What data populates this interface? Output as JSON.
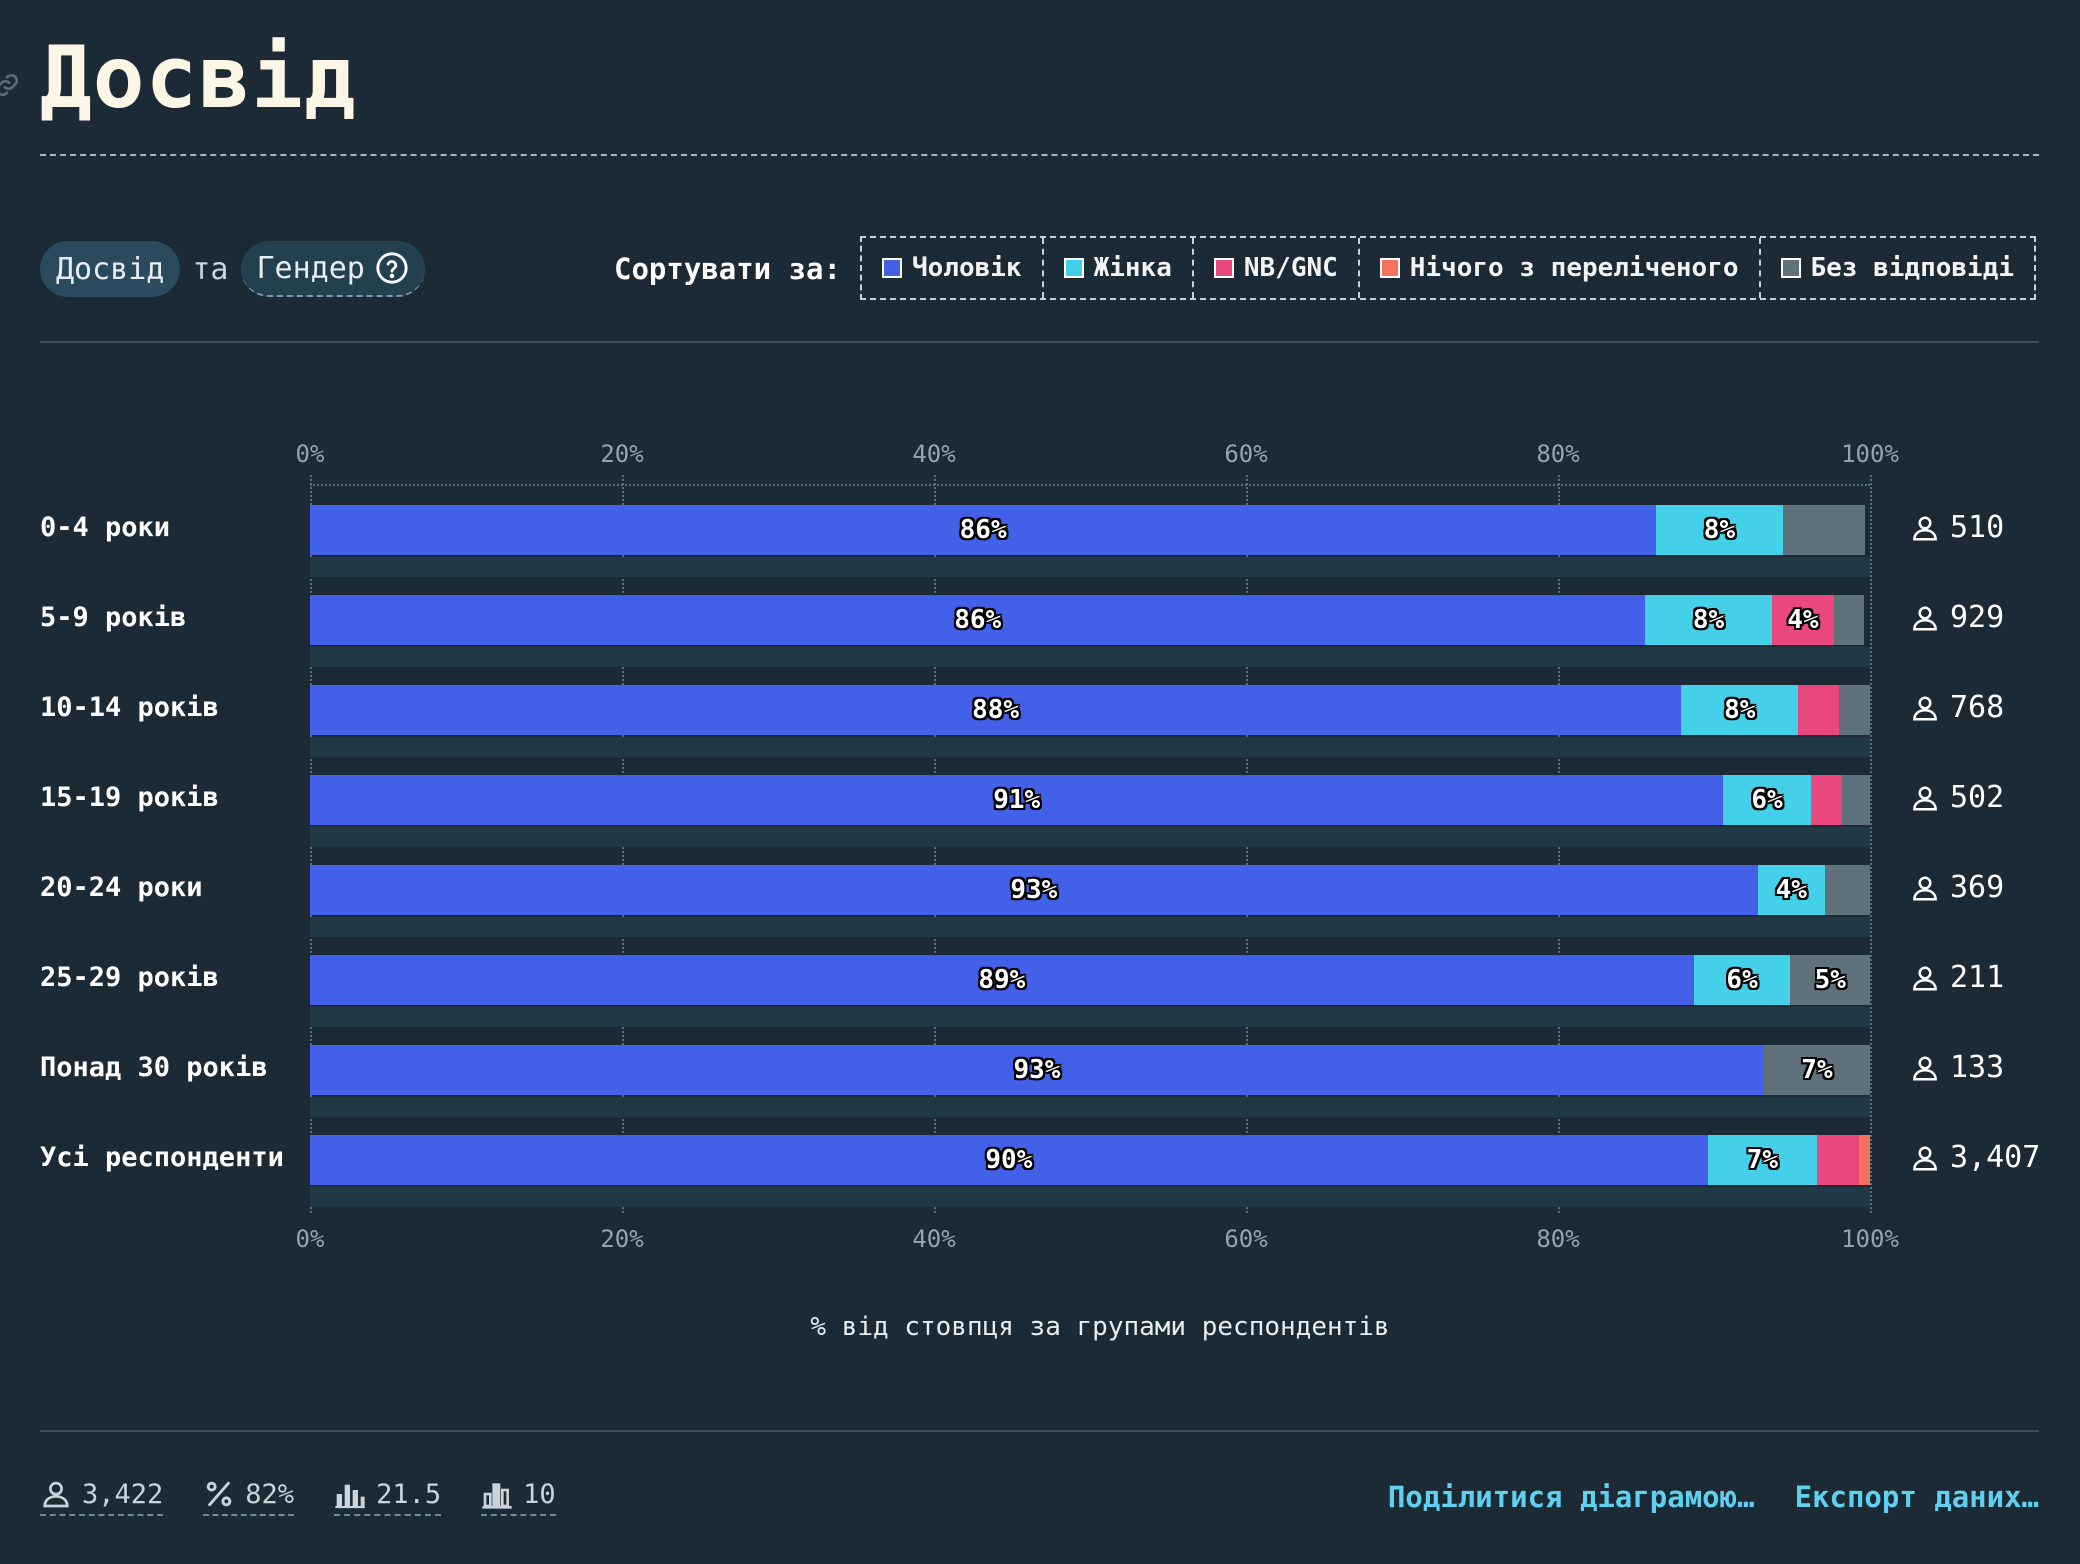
{
  "page": {
    "title": "Досвід"
  },
  "selector": {
    "primary": "Досвід",
    "conjunction": "та",
    "secondary": "Гендер"
  },
  "sort": {
    "label": "Сортувати за:",
    "legend": [
      {
        "name": "Чоловік",
        "color": "#4360e8"
      },
      {
        "name": "Жінка",
        "color": "#45d0ea"
      },
      {
        "name": "NB/GNC",
        "color": "#e9477d"
      },
      {
        "name": "Нічого з переліченого",
        "color": "#f5705f"
      },
      {
        "name": "Без відповіді",
        "color": "#5f717b"
      }
    ]
  },
  "chart_data": {
    "type": "bar",
    "orientation": "horizontal",
    "stacked": true,
    "xlabel": "% від стовпця за групами респондентів",
    "xlim": [
      0,
      100
    ],
    "x_ticks": [
      "0%",
      "20%",
      "40%",
      "60%",
      "80%",
      "100%"
    ],
    "categories": [
      "0-4 роки",
      "5-9 років",
      "10-14 років",
      "15-19 років",
      "20-24 роки",
      "25-29 років",
      "Понад 30 років",
      "Усі респонденти"
    ],
    "counts": [
      "510",
      "929",
      "768",
      "502",
      "369",
      "211",
      "133",
      "3,407"
    ],
    "series": [
      {
        "name": "Чоловік",
        "color": "#4360e8",
        "values": [
          86.3,
          85.6,
          87.9,
          90.6,
          92.8,
          88.7,
          93.2,
          89.6
        ],
        "labels": [
          "86%",
          "86%",
          "88%",
          "91%",
          "93%",
          "89%",
          "93%",
          "90%"
        ]
      },
      {
        "name": "Жінка",
        "color": "#45d0ea",
        "values": [
          8.1,
          8.1,
          7.5,
          5.6,
          4.3,
          6.2,
          0,
          7.0
        ],
        "labels": [
          "8%",
          "8%",
          "8%",
          "6%",
          "4%",
          "6%",
          "",
          "7%"
        ]
      },
      {
        "name": "NB/GNC",
        "color": "#e9477d",
        "values": [
          0,
          4.0,
          2.6,
          2.0,
          0,
          0,
          0,
          2.7
        ],
        "labels": [
          "",
          "4%",
          "",
          "",
          "",
          "",
          "",
          ""
        ]
      },
      {
        "name": "Нічого з переліченого",
        "color": "#f5705f",
        "values": [
          0,
          0,
          0,
          0,
          0,
          0,
          0,
          0.7
        ],
        "labels": [
          "",
          "",
          "",
          "",
          "",
          "",
          "",
          ""
        ]
      },
      {
        "name": "Без відповіді",
        "color": "#5f717b",
        "values": [
          5.3,
          1.9,
          2.0,
          1.8,
          2.9,
          5.1,
          6.8,
          0
        ],
        "labels": [
          "",
          "",
          "",
          "",
          "",
          "5%",
          "7%",
          ""
        ]
      }
    ]
  },
  "footer": {
    "stats": [
      {
        "icon": "person-icon",
        "value": "3,422"
      },
      {
        "icon": "percent-icon",
        "value": "82%"
      },
      {
        "icon": "bar-chart-icon",
        "value": "21.5"
      },
      {
        "icon": "bar-chart-outline-icon",
        "value": "10"
      }
    ],
    "share_label": "Поділитися діаграмою…",
    "export_label": "Експорт даних…"
  }
}
